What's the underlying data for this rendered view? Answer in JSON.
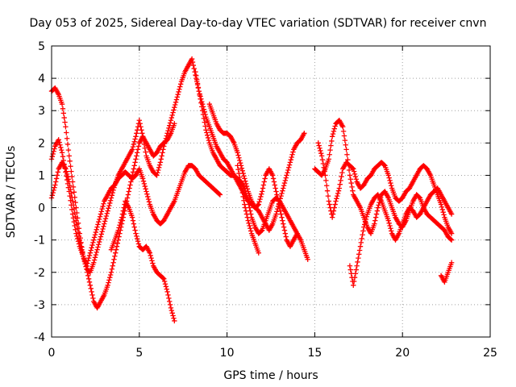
{
  "chart_data": {
    "type": "scatter",
    "title": "Day 053 of 2025, Sidereal Day-to-day VTEC variation (SDTVAR) for receiver cnvn",
    "xlabel": "GPS time / hours",
    "ylabel": "SDTVAR / TECUs",
    "xlim": [
      0,
      25
    ],
    "ylim": [
      -4,
      5
    ],
    "xticks": [
      "0",
      "5",
      "10",
      "15",
      "20",
      "25"
    ],
    "yticks": [
      "-4",
      "-3",
      "-2",
      "-1",
      "0",
      "1",
      "2",
      "3",
      "4",
      "5"
    ],
    "grid": true,
    "marker": "+",
    "color": "#ff0000",
    "series": [
      {
        "name": "trace-1",
        "x": [
          0.0,
          0.2,
          0.4,
          0.6,
          0.8,
          1.0,
          1.2,
          1.4,
          1.6,
          1.8,
          2.0,
          2.2,
          2.4,
          2.6,
          2.8,
          3.0,
          3.2,
          3.4,
          3.6,
          3.8,
          4.0,
          4.2,
          4.4,
          4.6,
          4.8,
          5.0,
          5.2,
          5.4,
          5.6,
          5.8,
          6.0,
          6.2,
          6.4,
          6.6,
          6.8,
          7.0
        ],
        "y": [
          1.5,
          1.9,
          2.1,
          1.7,
          1.1,
          0.5,
          -0.2,
          -0.8,
          -1.2,
          -1.5,
          -1.9,
          -2.4,
          -2.9,
          -3.1,
          -2.9,
          -2.7,
          -2.4,
          -2.0,
          -1.5,
          -1.0,
          -0.5,
          0.0,
          0.5,
          1.0,
          1.5,
          2.0,
          2.2,
          2.0,
          1.8,
          1.6,
          1.7,
          1.9,
          2.0,
          2.1,
          2.3,
          2.6
        ]
      },
      {
        "name": "trace-2",
        "x": [
          0.0,
          0.2,
          0.4,
          0.6,
          0.8,
          1.0,
          1.2,
          1.4,
          1.6,
          1.8,
          2.0,
          2.2,
          2.4,
          2.6,
          2.8,
          3.0,
          3.2,
          3.4,
          3.6,
          3.8,
          4.0,
          4.2,
          4.4,
          4.6,
          4.8,
          5.0,
          5.2,
          5.4,
          5.6,
          5.8,
          6.0,
          6.2,
          6.4,
          6.6,
          6.8,
          7.0,
          7.2,
          7.4,
          7.6,
          7.8,
          8.0,
          8.2,
          8.4,
          8.6,
          8.8,
          9.0,
          9.2,
          9.4,
          9.6,
          9.8,
          10.0,
          10.2,
          10.4,
          10.6,
          10.8,
          11.0,
          11.2,
          11.4,
          11.6,
          11.8,
          12.0,
          12.2,
          12.4,
          12.6,
          12.8,
          13.0,
          13.2,
          13.4,
          13.6,
          13.8,
          14.0,
          14.2,
          14.4
        ],
        "y": [
          3.6,
          3.7,
          3.5,
          3.2,
          2.5,
          1.6,
          0.8,
          0.0,
          -0.8,
          -1.5,
          -1.9,
          -2.0,
          -1.7,
          -1.3,
          -0.9,
          -0.5,
          -0.1,
          0.3,
          0.7,
          1.0,
          1.2,
          1.4,
          1.6,
          1.8,
          2.2,
          2.7,
          2.2,
          1.6,
          1.3,
          1.1,
          1.0,
          1.4,
          1.9,
          2.3,
          2.7,
          3.1,
          3.5,
          3.9,
          4.2,
          4.4,
          4.6,
          4.1,
          3.6,
          3.2,
          2.8,
          2.5,
          2.2,
          1.9,
          1.7,
          1.5,
          1.4,
          1.2,
          1.0,
          0.8,
          0.6,
          0.4,
          0.2,
          0.1,
          0.0,
          -0.1,
          -0.3,
          -0.5,
          -0.7,
          -0.5,
          -0.2,
          0.2,
          0.6,
          1.0,
          1.4,
          1.8,
          2.0,
          2.1,
          2.3
        ]
      },
      {
        "name": "trace-3",
        "x": [
          0.0,
          0.2,
          0.4,
          0.6,
          0.8,
          1.0,
          1.2,
          1.4,
          1.6,
          1.8,
          2.0,
          2.2,
          2.4,
          2.6,
          2.8,
          3.0,
          3.2,
          3.4,
          3.6,
          3.8,
          4.0,
          4.2,
          4.4,
          4.6,
          4.8,
          5.0,
          5.2,
          5.4,
          5.6,
          5.8,
          6.0,
          6.2,
          6.4,
          6.6,
          6.8,
          7.0,
          7.2,
          7.4,
          7.6,
          7.8,
          8.0,
          8.2,
          8.4,
          8.6,
          8.8,
          9.0,
          9.2,
          9.4,
          9.6
        ],
        "y": [
          0.3,
          0.7,
          1.2,
          1.4,
          1.2,
          0.8,
          0.2,
          -0.4,
          -1.0,
          -1.5,
          -1.8,
          -1.4,
          -1.0,
          -0.6,
          -0.2,
          0.2,
          0.4,
          0.6,
          0.7,
          0.9,
          1.0,
          1.1,
          1.0,
          0.9,
          1.0,
          1.2,
          0.9,
          0.5,
          0.1,
          -0.2,
          -0.4,
          -0.5,
          -0.4,
          -0.2,
          0.0,
          0.2,
          0.5,
          0.8,
          1.1,
          1.3,
          1.3,
          1.2,
          1.0,
          0.9,
          0.8,
          0.7,
          0.6,
          0.5,
          0.4
        ]
      },
      {
        "name": "trace-4",
        "x": [
          3.4,
          3.6,
          3.8,
          4.0,
          4.2,
          4.4,
          4.6,
          4.8,
          5.0,
          5.2,
          5.4,
          5.6,
          5.8,
          6.0,
          6.2,
          6.4,
          6.6,
          6.8,
          7.0
        ],
        "y": [
          -1.3,
          -1.0,
          -0.7,
          -0.3,
          0.2,
          0.0,
          -0.3,
          -0.8,
          -1.2,
          -1.3,
          -1.2,
          -1.4,
          -1.8,
          -2.0,
          -2.1,
          -2.2,
          -2.6,
          -3.1,
          -3.5
        ]
      },
      {
        "name": "trace-5",
        "x": [
          8.2,
          8.4,
          8.6,
          8.8,
          9.0,
          9.2,
          9.4,
          9.6,
          9.8,
          10.0,
          10.2,
          10.4,
          10.6,
          10.8,
          11.0,
          11.2,
          11.4,
          11.6,
          11.8,
          12.0,
          12.2,
          12.4,
          12.6,
          12.8,
          13.0,
          13.2,
          13.4,
          13.6,
          13.8,
          14.0,
          14.2,
          14.4,
          14.6
        ],
        "y": [
          4.2,
          3.6,
          3.0,
          2.4,
          2.0,
          1.7,
          1.5,
          1.3,
          1.2,
          1.1,
          1.0,
          1.0,
          0.9,
          0.8,
          0.6,
          0.2,
          -0.3,
          -0.6,
          -0.8,
          -0.7,
          -0.4,
          -0.1,
          0.2,
          0.3,
          0.2,
          0.0,
          -0.2,
          -0.4,
          -0.6,
          -0.8,
          -1.0,
          -1.3,
          -1.6
        ]
      },
      {
        "name": "trace-6",
        "x": [
          9.0,
          9.2,
          9.4,
          9.6,
          9.8,
          10.0,
          10.2,
          10.4,
          10.6,
          10.8,
          11.0,
          11.2,
          11.4,
          11.6,
          11.8,
          12.0,
          12.2,
          12.4,
          12.6,
          12.8,
          13.0,
          13.2,
          13.4,
          13.6,
          13.8,
          14.0
        ],
        "y": [
          3.2,
          2.9,
          2.6,
          2.4,
          2.3,
          2.3,
          2.2,
          2.0,
          1.7,
          1.3,
          0.9,
          0.5,
          0.2,
          0.0,
          0.1,
          0.5,
          1.0,
          1.2,
          1.0,
          0.5,
          0.0,
          -0.5,
          -1.0,
          -1.2,
          -1.0,
          -0.8
        ]
      },
      {
        "name": "trace-7",
        "x": [
          10.6,
          10.8,
          11.0,
          11.2,
          11.4,
          11.6,
          11.8
        ],
        "y": [
          1.3,
          0.7,
          0.1,
          -0.4,
          -0.8,
          -1.1,
          -1.4
        ]
      },
      {
        "name": "trace-8",
        "x": [
          15.0,
          15.2,
          15.4,
          15.6,
          15.8,
          16.0,
          16.2,
          16.4,
          16.6,
          16.8,
          17.0,
          17.2,
          17.4,
          17.6,
          17.8,
          18.0,
          18.2,
          18.4,
          18.6,
          18.8,
          19.0,
          19.2,
          19.4,
          19.6,
          19.8,
          20.0,
          20.2,
          20.4,
          20.6,
          20.8,
          21.0,
          21.2,
          21.4,
          21.6,
          21.8,
          22.0,
          22.2,
          22.4,
          22.6,
          22.8
        ],
        "y": [
          1.2,
          1.1,
          1.0,
          1.2,
          1.5,
          2.2,
          2.6,
          2.7,
          2.5,
          1.8,
          1.0,
          0.4,
          0.2,
          0.0,
          -0.3,
          -0.6,
          -0.8,
          -0.5,
          0.0,
          0.4,
          0.5,
          0.3,
          0.0,
          -0.3,
          -0.5,
          -0.6,
          -0.4,
          -0.1,
          0.2,
          0.4,
          0.3,
          0.0,
          -0.2,
          -0.3,
          -0.4,
          -0.5,
          -0.6,
          -0.7,
          -0.9,
          -1.0
        ]
      },
      {
        "name": "trace-9",
        "x": [
          15.2,
          15.4,
          15.6,
          15.8,
          16.0,
          16.2,
          16.4,
          16.6,
          16.8,
          17.0,
          17.2,
          17.4,
          17.6,
          17.8,
          18.0,
          18.2,
          18.4,
          18.6,
          18.8,
          19.0,
          19.2,
          19.4,
          19.6,
          19.8,
          20.0,
          20.2,
          20.4,
          20.6,
          20.8,
          21.0,
          21.2,
          21.4,
          21.6,
          21.8,
          22.0,
          22.2,
          22.4,
          22.6,
          22.8
        ],
        "y": [
          2.0,
          1.6,
          1.0,
          0.2,
          -0.3,
          0.2,
          0.6,
          1.2,
          1.4,
          1.3,
          1.2,
          0.8,
          0.6,
          0.7,
          0.9,
          1.0,
          1.2,
          1.3,
          1.4,
          1.3,
          1.0,
          0.6,
          0.3,
          0.2,
          0.3,
          0.5,
          0.6,
          0.8,
          1.0,
          1.2,
          1.3,
          1.2,
          1.0,
          0.7,
          0.4,
          0.1,
          -0.3,
          -0.6,
          -0.8
        ]
      },
      {
        "name": "trace-10",
        "x": [
          17.0,
          17.2,
          17.4,
          17.6,
          17.8,
          18.0,
          18.2,
          18.4,
          18.6,
          18.8,
          19.0,
          19.2,
          19.4,
          19.6,
          19.8,
          20.0,
          20.2,
          20.4,
          20.6,
          20.8,
          21.0,
          21.2,
          21.4,
          21.6,
          21.8,
          22.0,
          22.2,
          22.4,
          22.6,
          22.8
        ],
        "y": [
          -1.8,
          -2.4,
          -1.8,
          -1.2,
          -0.6,
          -0.2,
          0.1,
          0.3,
          0.4,
          0.2,
          -0.1,
          -0.4,
          -0.8,
          -1.0,
          -0.8,
          -0.5,
          -0.2,
          0.0,
          -0.1,
          -0.3,
          -0.2,
          0.0,
          0.2,
          0.4,
          0.5,
          0.6,
          0.4,
          0.2,
          0.0,
          -0.2
        ]
      },
      {
        "name": "trace-11",
        "x": [
          22.2,
          22.4,
          22.6,
          22.8
        ],
        "y": [
          -2.1,
          -2.3,
          -2.0,
          -1.7
        ]
      }
    ]
  }
}
